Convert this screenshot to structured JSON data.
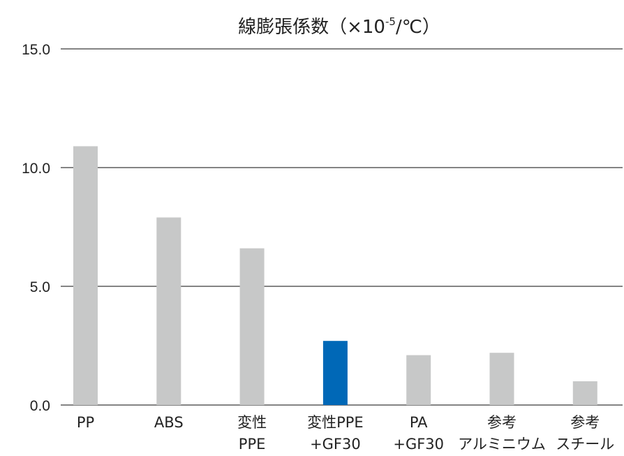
{
  "chart_data": {
    "type": "bar",
    "title_main": "線膨張係数（×10",
    "title_exp": "-5",
    "title_unit": "/℃）",
    "categories": [
      [
        "PP"
      ],
      [
        "ABS"
      ],
      [
        "変性",
        "PPE"
      ],
      [
        "変性PPE",
        "+GF30"
      ],
      [
        "PA",
        "+GF30"
      ],
      [
        "参考",
        "アルミニウム"
      ],
      [
        "参考",
        "スチール"
      ]
    ],
    "values": [
      10.9,
      7.9,
      6.6,
      2.7,
      2.1,
      2.2,
      1.0
    ],
    "ylim": [
      0,
      15
    ],
    "yticks": [
      "0.0",
      "5.0",
      "10.0",
      "15.0"
    ],
    "ytick_values": [
      0,
      5,
      10,
      15
    ],
    "highlight_index": 3,
    "colors": {
      "bar": "#c7c8c8",
      "highlight": "#0068b7",
      "grid": "#3a3a3a",
      "text": "#222222"
    },
    "grid": true,
    "legend": "none"
  }
}
